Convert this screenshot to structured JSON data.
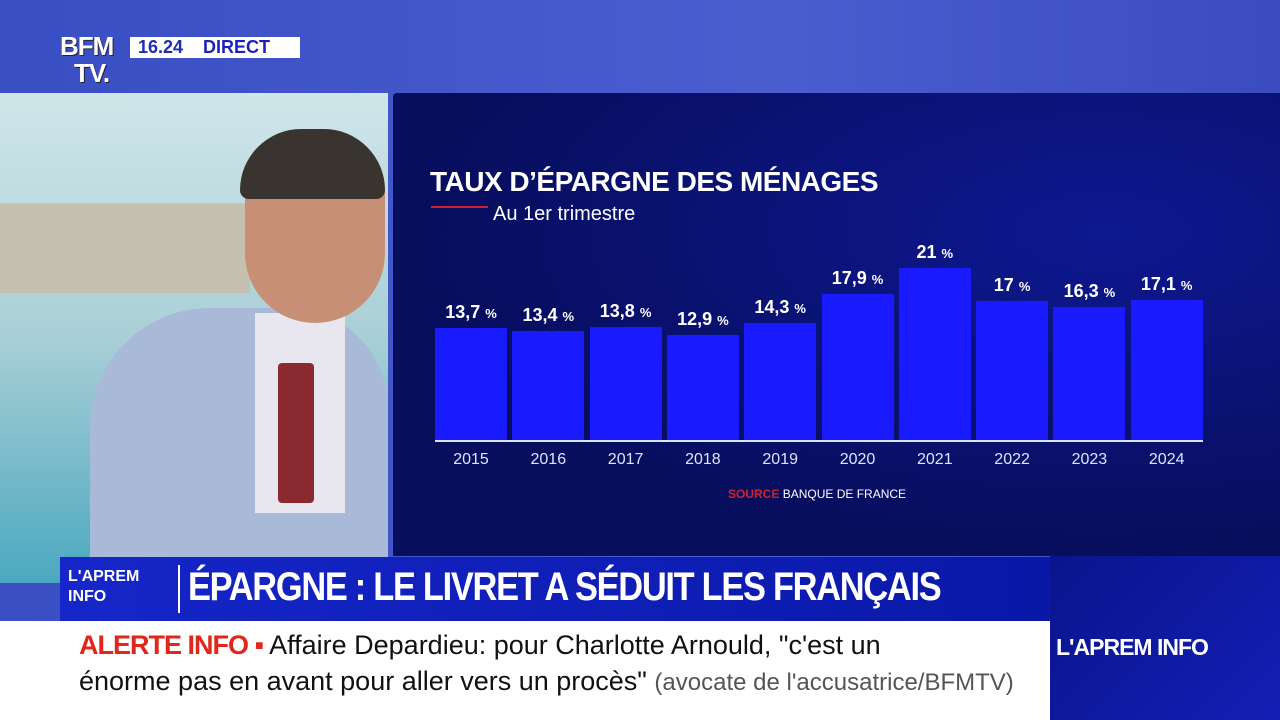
{
  "channel": {
    "logo_line1": "BFM",
    "logo_line2": "TV.",
    "time": "16.24",
    "live": "DIRECT"
  },
  "chart_data": {
    "type": "bar",
    "title": "TAUX D’ÉPARGNE DES MÉNAGES",
    "subtitle": "Au 1er trimestre",
    "categories": [
      "2015",
      "2016",
      "2017",
      "2018",
      "2019",
      "2020",
      "2021",
      "2022",
      "2023",
      "2024"
    ],
    "values": [
      13.7,
      13.4,
      13.8,
      12.9,
      14.3,
      17.9,
      21,
      17,
      16.3,
      17.1
    ],
    "labels": [
      "13,7",
      "13,4",
      "13,8",
      "12,9",
      "14,3",
      "17,9",
      "21",
      "17",
      "16,3",
      "17,1"
    ],
    "unit": "%",
    "ylim": [
      0,
      21
    ],
    "grid": false,
    "bar_color": "#1a1aff",
    "source_label": "SOURCE",
    "source": "BANQUE DE FRANCE"
  },
  "banner": {
    "show_logo": "L'APREM INFO",
    "headline": "ÉPARGNE : LE LIVRET A SÉDUIT LES FRANÇAIS"
  },
  "ticker": {
    "alert": "ALERTE INFO ▪",
    "line1": "Affaire Depardieu: pour Charlotte Arnould, \"c'est un",
    "line2": "énorme pas en avant pour aller vers un procès\"",
    "attribution": "(avocate de l'accusatrice/BFMTV)"
  },
  "corner_show": "L'APREM INFO"
}
